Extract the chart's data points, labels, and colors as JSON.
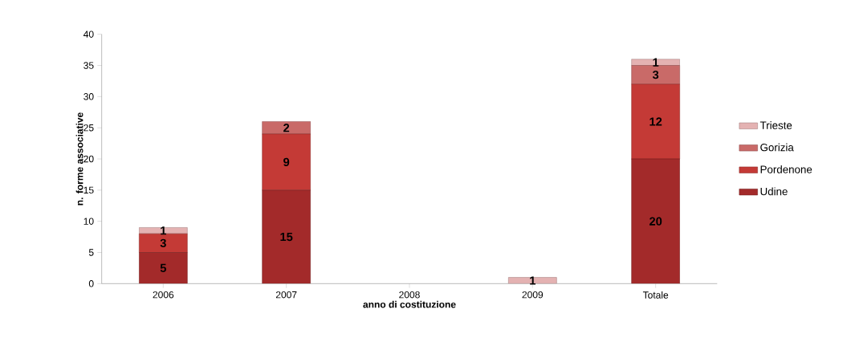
{
  "chart_data": {
    "type": "bar",
    "stacked": true,
    "xlabel": "anno di costituzione",
    "ylabel": "n. forme associative",
    "categories": [
      "2006",
      "2007",
      "2008",
      "2009",
      "Totale"
    ],
    "series": [
      {
        "name": "Udine",
        "color": "#a32a2a",
        "values": [
          5,
          15,
          0,
          0,
          20
        ],
        "value_labels": [
          "5",
          "15",
          null,
          null,
          "20"
        ]
      },
      {
        "name": "Pordenone",
        "color": "#c43a36",
        "values": [
          3,
          9,
          0,
          0,
          12
        ],
        "value_labels": [
          "3",
          "9",
          null,
          null,
          "12"
        ]
      },
      {
        "name": "Gorizia",
        "color": "#c96a68",
        "values": [
          0,
          2,
          0,
          0,
          3
        ],
        "value_labels": [
          null,
          "2",
          null,
          null,
          "3"
        ]
      },
      {
        "name": "Trieste",
        "color": "#e4b2b2",
        "values": [
          1,
          0,
          0,
          1,
          1
        ],
        "value_labels": [
          "1",
          null,
          null,
          "1",
          "1"
        ]
      }
    ],
    "ylim": [
      0,
      40
    ],
    "yticks": [
      0,
      5,
      10,
      15,
      20,
      25,
      30,
      35,
      40
    ],
    "legend": "right"
  }
}
